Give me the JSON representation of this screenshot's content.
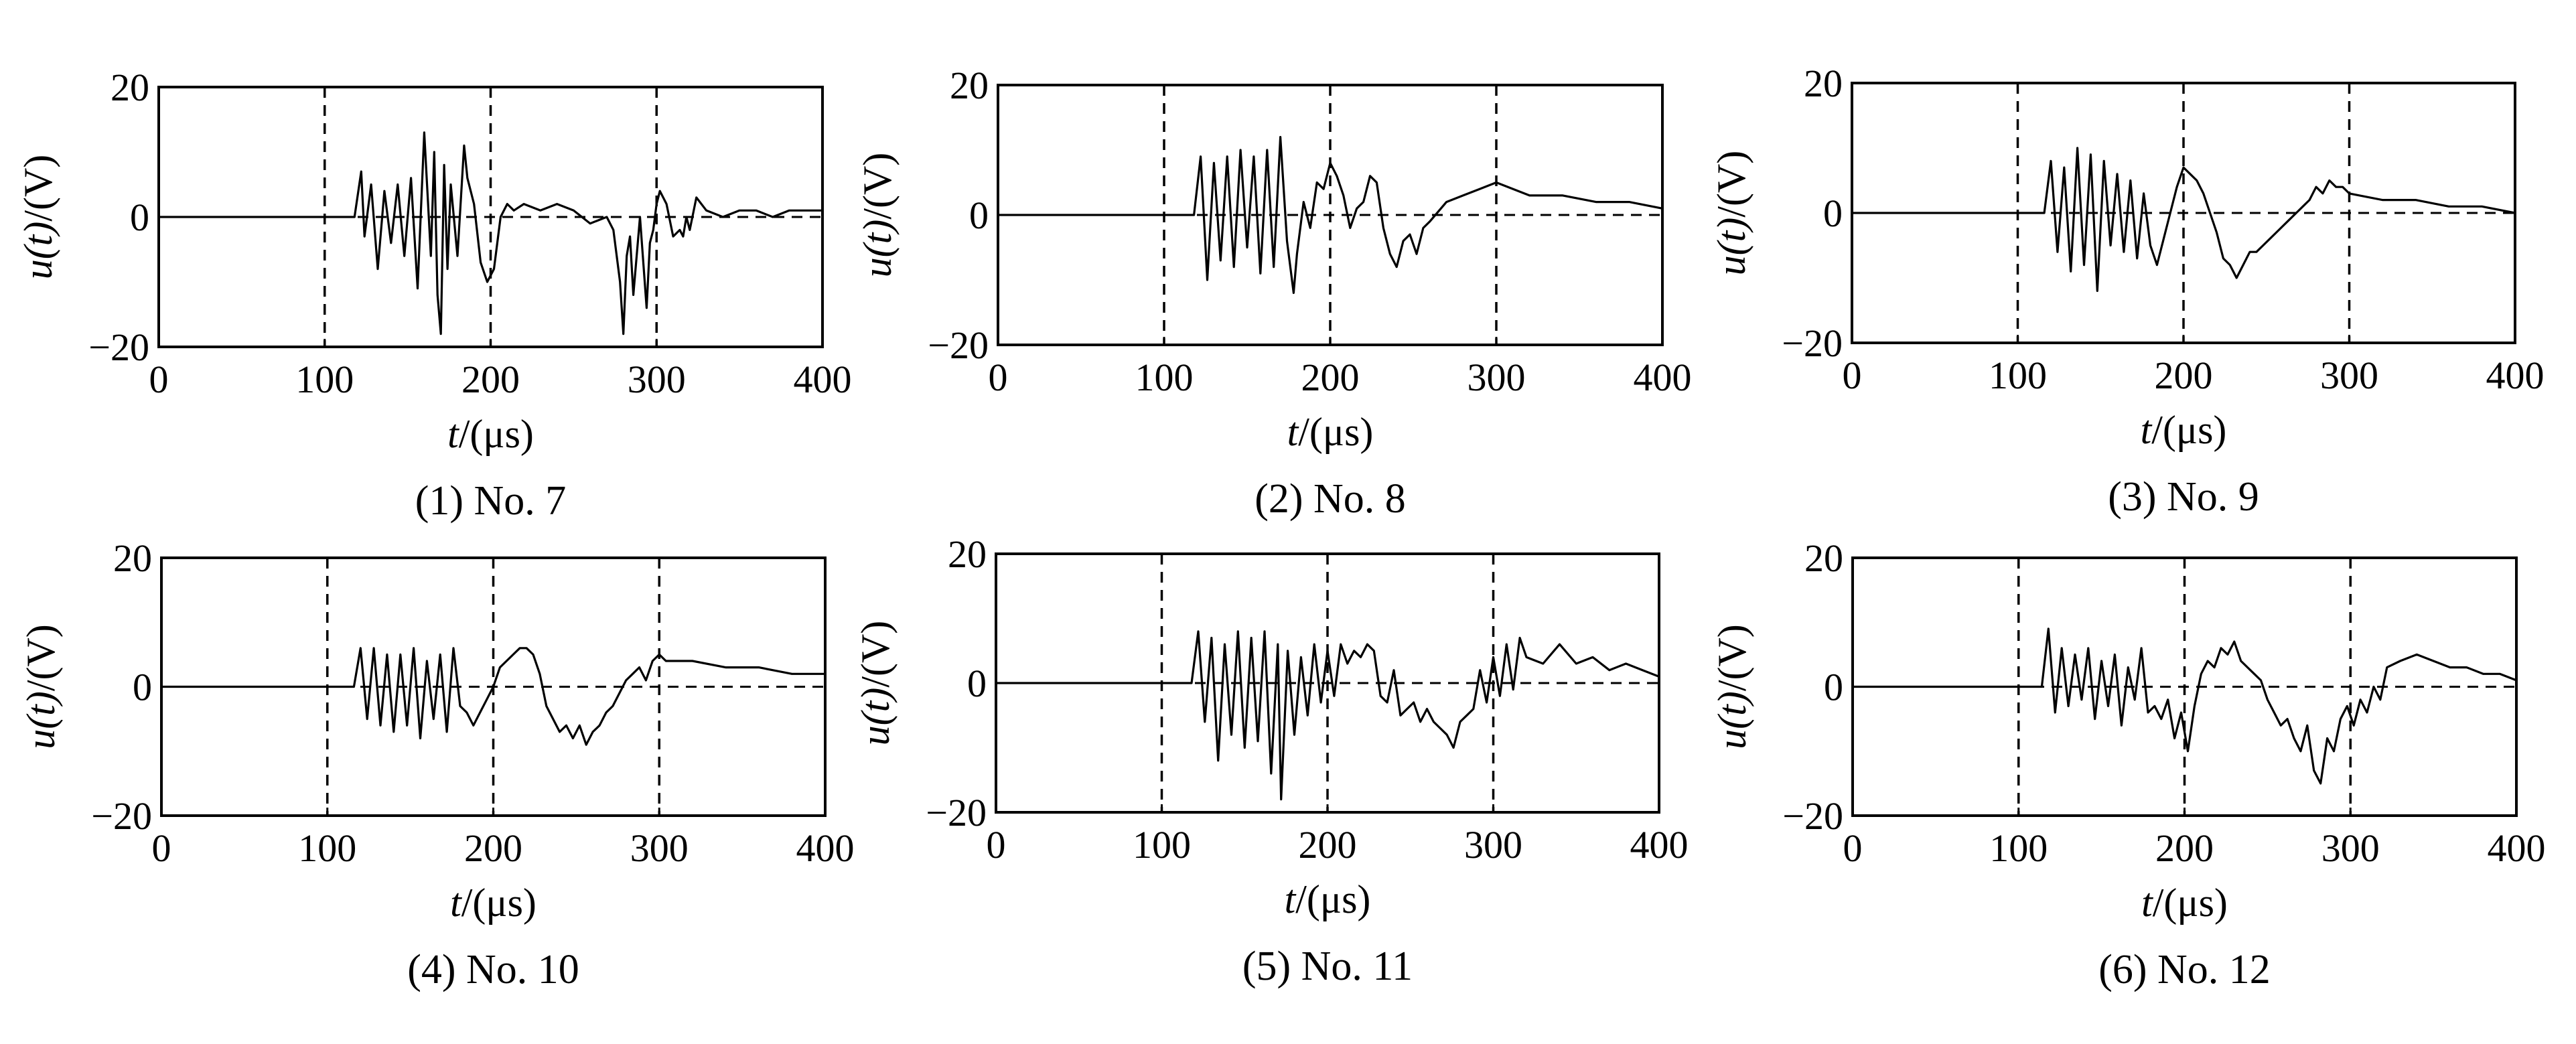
{
  "chart_data": [
    {
      "type": "line",
      "caption": "(1) No. 7",
      "xlabel_var": "t",
      "xlabel_unit": "/(μs)",
      "ylabel_var": "u(t)",
      "ylabel_unit": "/(V)",
      "xlim": [
        0,
        400
      ],
      "ylim": [
        -20,
        20
      ],
      "xticks": [
        0,
        100,
        200,
        300,
        400
      ],
      "yticks": [
        -20,
        0,
        20
      ],
      "ytick_labels": [
        "−20",
        "0",
        "20"
      ],
      "vgrid": [
        100,
        200,
        300
      ],
      "x": [
        0,
        40,
        80,
        118,
        122,
        124,
        128,
        132,
        136,
        140,
        144,
        148,
        152,
        156,
        160,
        164,
        166,
        168,
        170,
        172,
        174,
        176,
        180,
        184,
        186,
        190,
        194,
        198,
        202,
        206,
        210,
        214,
        220,
        230,
        240,
        250,
        260,
        270,
        274,
        278,
        280,
        282,
        284,
        286,
        290,
        294,
        296,
        298,
        300,
        302,
        306,
        310,
        314,
        316,
        318,
        320,
        324,
        330,
        340,
        350,
        360,
        370,
        380,
        400
      ],
      "y": [
        0,
        0,
        0,
        0,
        7,
        -3,
        5,
        -8,
        4,
        -4,
        5,
        -6,
        6,
        -11,
        13,
        -6,
        10,
        -12,
        -18,
        8,
        -8,
        5,
        -6,
        11,
        6,
        2,
        -7,
        -10,
        -8,
        0,
        2,
        1,
        2,
        1,
        2,
        1,
        -1,
        0,
        -2,
        -10,
        -18,
        -6,
        -3,
        -12,
        0,
        -14,
        -4,
        -2,
        2,
        4,
        2,
        -3,
        -2,
        -3,
        0,
        -2,
        3,
        1,
        0,
        1,
        1,
        0,
        1,
        1
      ]
    },
    {
      "type": "line",
      "caption": "(2) No. 8",
      "xlabel_var": "t",
      "xlabel_unit": "/(μs)",
      "ylabel_var": "u(t)",
      "ylabel_unit": "/(V)",
      "xlim": [
        0,
        400
      ],
      "ylim": [
        -20,
        20
      ],
      "xticks": [
        0,
        100,
        200,
        300,
        400
      ],
      "yticks": [
        -20,
        0,
        20
      ],
      "ytick_labels": [
        "−20",
        "0",
        "20"
      ],
      "vgrid": [
        100,
        200,
        300
      ],
      "x": [
        0,
        60,
        118,
        122,
        126,
        130,
        134,
        138,
        142,
        146,
        150,
        154,
        158,
        162,
        166,
        170,
        174,
        178,
        180,
        184,
        188,
        192,
        196,
        200,
        204,
        208,
        212,
        216,
        220,
        224,
        228,
        232,
        236,
        240,
        244,
        248,
        252,
        256,
        260,
        270,
        280,
        290,
        300,
        320,
        340,
        360,
        380,
        400
      ],
      "y": [
        0,
        0,
        0,
        9,
        -10,
        8,
        -7,
        9,
        -8,
        10,
        -5,
        9,
        -9,
        10,
        -8,
        12,
        -4,
        -12,
        -6,
        2,
        -2,
        5,
        4,
        8,
        6,
        3,
        -2,
        1,
        2,
        6,
        5,
        -2,
        -6,
        -8,
        -4,
        -3,
        -6,
        -2,
        -1,
        2,
        3,
        4,
        5,
        3,
        3,
        2,
        2,
        1
      ]
    },
    {
      "type": "line",
      "caption": "(3) No. 9",
      "xlabel_var": "t",
      "xlabel_unit": "/(μs)",
      "ylabel_var": "u(t)",
      "ylabel_unit": "/(V)",
      "xlim": [
        0,
        400
      ],
      "ylim": [
        -20,
        20
      ],
      "xticks": [
        0,
        100,
        200,
        300,
        400
      ],
      "yticks": [
        -20,
        0,
        20
      ],
      "ytick_labels": [
        "−20",
        "0",
        "20"
      ],
      "vgrid": [
        100,
        200,
        300
      ],
      "x": [
        0,
        60,
        116,
        120,
        124,
        128,
        132,
        136,
        140,
        144,
        148,
        152,
        156,
        160,
        164,
        168,
        172,
        176,
        180,
        184,
        188,
        192,
        196,
        200,
        204,
        208,
        212,
        216,
        220,
        224,
        228,
        232,
        236,
        240,
        244,
        248,
        252,
        256,
        260,
        264,
        268,
        272,
        276,
        280,
        284,
        288,
        292,
        296,
        300,
        320,
        340,
        360,
        380,
        400
      ],
      "y": [
        0,
        0,
        0,
        8,
        -6,
        7,
        -9,
        10,
        -8,
        9,
        -12,
        8,
        -5,
        6,
        -6,
        5,
        -7,
        3,
        -5,
        -8,
        -4,
        0,
        4,
        7,
        6,
        5,
        3,
        0,
        -3,
        -7,
        -8,
        -10,
        -8,
        -6,
        -6,
        -5,
        -4,
        -3,
        -2,
        -1,
        0,
        1,
        2,
        4,
        3,
        5,
        4,
        4,
        3,
        2,
        2,
        1,
        1,
        0
      ]
    },
    {
      "type": "line",
      "caption": "(4) No. 10",
      "xlabel_var": "t",
      "xlabel_unit": "/(μs)",
      "ylabel_var": "u(t)",
      "ylabel_unit": "/(V)",
      "xlim": [
        0,
        400
      ],
      "ylim": [
        -20,
        20
      ],
      "xticks": [
        0,
        100,
        200,
        300,
        400
      ],
      "yticks": [
        -20,
        0,
        20
      ],
      "ytick_labels": [
        "−20",
        "0",
        "20"
      ],
      "vgrid": [
        100,
        200,
        300
      ],
      "x": [
        0,
        60,
        116,
        120,
        124,
        128,
        132,
        136,
        140,
        144,
        148,
        152,
        156,
        160,
        164,
        168,
        172,
        176,
        180,
        184,
        188,
        192,
        196,
        200,
        204,
        208,
        212,
        216,
        220,
        224,
        228,
        232,
        236,
        240,
        244,
        248,
        252,
        256,
        260,
        264,
        268,
        272,
        276,
        280,
        284,
        288,
        292,
        296,
        300,
        304,
        320,
        340,
        360,
        380,
        400
      ],
      "y": [
        0,
        0,
        0,
        6,
        -5,
        6,
        -6,
        5,
        -7,
        5,
        -6,
        6,
        -8,
        4,
        -5,
        5,
        -7,
        6,
        -3,
        -4,
        -6,
        -4,
        -2,
        0,
        3,
        4,
        5,
        6,
        6,
        5,
        2,
        -3,
        -5,
        -7,
        -6,
        -8,
        -6,
        -9,
        -7,
        -6,
        -4,
        -3,
        -1,
        1,
        2,
        3,
        1,
        4,
        5,
        4,
        4,
        3,
        3,
        2,
        2
      ]
    },
    {
      "type": "line",
      "caption": "(5) No. 11",
      "xlabel_var": "t",
      "xlabel_unit": "/(μs)",
      "ylabel_var": "u(t)",
      "ylabel_unit": "/(V)",
      "xlim": [
        0,
        400
      ],
      "ylim": [
        -20,
        20
      ],
      "xticks": [
        0,
        100,
        200,
        300,
        400
      ],
      "yticks": [
        -20,
        0,
        20
      ],
      "ytick_labels": [
        "−20",
        "0",
        "20"
      ],
      "vgrid": [
        100,
        200,
        300
      ],
      "x": [
        0,
        60,
        118,
        122,
        126,
        130,
        134,
        138,
        142,
        146,
        150,
        154,
        158,
        162,
        166,
        170,
        172,
        176,
        180,
        184,
        188,
        192,
        196,
        200,
        204,
        208,
        212,
        216,
        220,
        224,
        228,
        232,
        236,
        240,
        244,
        248,
        252,
        256,
        260,
        264,
        268,
        272,
        276,
        280,
        284,
        288,
        292,
        296,
        300,
        304,
        308,
        312,
        316,
        320,
        330,
        340,
        350,
        360,
        370,
        380,
        390,
        400
      ],
      "y": [
        0,
        0,
        0,
        8,
        -6,
        7,
        -12,
        6,
        -8,
        8,
        -10,
        7,
        -9,
        8,
        -14,
        6,
        -18,
        5,
        -8,
        4,
        -5,
        6,
        -3,
        5,
        -2,
        6,
        3,
        5,
        4,
        6,
        5,
        -2,
        -3,
        2,
        -5,
        -4,
        -3,
        -6,
        -4,
        -6,
        -7,
        -8,
        -10,
        -6,
        -5,
        -4,
        2,
        -3,
        4,
        -2,
        6,
        -1,
        7,
        4,
        3,
        6,
        3,
        4,
        2,
        3,
        2,
        1
      ]
    },
    {
      "type": "line",
      "caption": "(6) No. 12",
      "xlabel_var": "t",
      "xlabel_unit": "/(μs)",
      "ylabel_var": "u(t)",
      "ylabel_unit": "/(V)",
      "xlim": [
        0,
        400
      ],
      "ylim": [
        -20,
        20
      ],
      "xticks": [
        0,
        100,
        200,
        300,
        400
      ],
      "yticks": [
        -20,
        0,
        20
      ],
      "ytick_labels": [
        "−20",
        "0",
        "20"
      ],
      "vgrid": [
        100,
        200,
        300
      ],
      "x": [
        0,
        60,
        114,
        118,
        122,
        126,
        130,
        134,
        138,
        142,
        146,
        150,
        154,
        158,
        162,
        166,
        170,
        174,
        178,
        182,
        186,
        190,
        194,
        198,
        202,
        206,
        210,
        214,
        218,
        222,
        226,
        230,
        234,
        238,
        242,
        246,
        250,
        254,
        258,
        262,
        266,
        270,
        274,
        278,
        282,
        286,
        290,
        294,
        298,
        302,
        306,
        310,
        314,
        318,
        322,
        330,
        340,
        350,
        360,
        370,
        380,
        390,
        400
      ],
      "y": [
        0,
        0,
        0,
        9,
        -4,
        6,
        -3,
        5,
        -2,
        6,
        -5,
        4,
        -3,
        5,
        -6,
        3,
        -2,
        6,
        -4,
        -3,
        -5,
        -2,
        -8,
        -4,
        -10,
        -3,
        2,
        4,
        3,
        6,
        5,
        7,
        4,
        3,
        2,
        1,
        -2,
        -4,
        -6,
        -5,
        -8,
        -10,
        -6,
        -13,
        -15,
        -8,
        -10,
        -5,
        -3,
        -6,
        -2,
        -4,
        0,
        -2,
        3,
        4,
        5,
        4,
        3,
        3,
        2,
        2,
        1
      ]
    }
  ]
}
